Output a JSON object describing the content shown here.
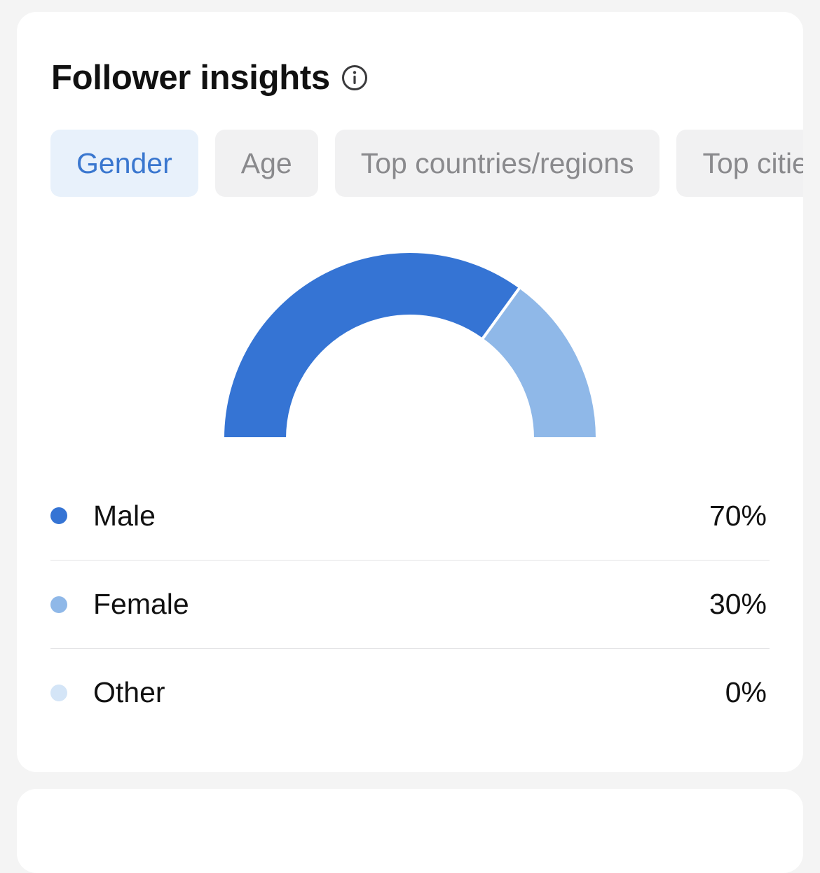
{
  "title": "Follower insights",
  "tabs": [
    {
      "label": "Gender",
      "active": true
    },
    {
      "label": "Age",
      "active": false
    },
    {
      "label": "Top countries/regions",
      "active": false
    },
    {
      "label": "Top cities",
      "active": false
    }
  ],
  "colors": {
    "male": "#3574d4",
    "female": "#8fb8e8",
    "other": "#d4e5f7",
    "accent": "#3a77cf"
  },
  "chart_data": {
    "type": "pie",
    "shape": "half-donut",
    "categories": [
      "Male",
      "Female",
      "Other"
    ],
    "values": [
      70,
      30,
      0
    ],
    "title": ""
  },
  "legend": [
    {
      "label": "Male",
      "value": "70%"
    },
    {
      "label": "Female",
      "value": "30%"
    },
    {
      "label": "Other",
      "value": "0%"
    }
  ]
}
